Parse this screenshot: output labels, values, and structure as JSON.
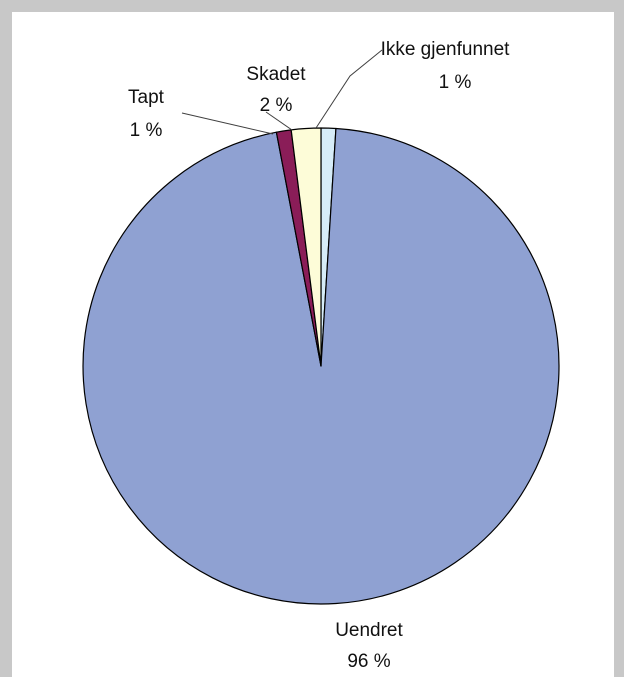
{
  "chart_data": {
    "type": "pie",
    "start_angle_deg": 0,
    "direction": "clockwise",
    "slices": [
      {
        "label": "Ikke gjenfunnet",
        "value": 1,
        "value_label": "1 %",
        "color": "#d6ecf8"
      },
      {
        "label": "Uendret",
        "value": 96,
        "value_label": "96 %",
        "color": "#8fa1d2"
      },
      {
        "label": "Tapt",
        "value": 1,
        "value_label": "1 %",
        "color": "#8a1d58"
      },
      {
        "label": "Skadet",
        "value": 2,
        "value_label": "2 %",
        "color": "#fdfcd8"
      }
    ]
  }
}
